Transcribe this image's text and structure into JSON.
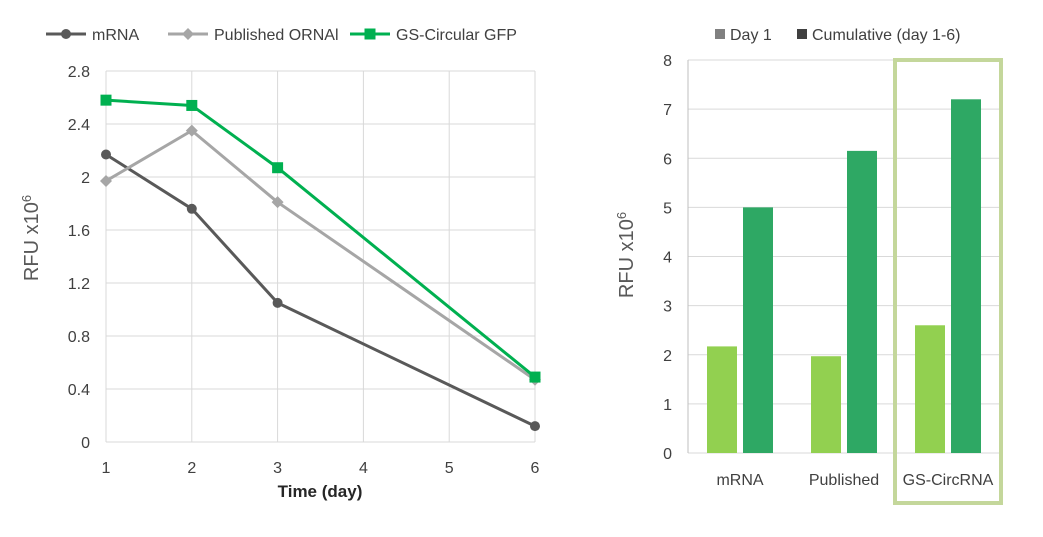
{
  "charts": {
    "line": {
      "legend": [
        {
          "name": "mRNA",
          "color": "#595959",
          "marker": "circle"
        },
        {
          "name": "Published ORNAl",
          "color": "#a6a6a6",
          "marker": "diamond"
        },
        {
          "name": "GS-Circular GFP",
          "color": "#00b050",
          "marker": "square"
        }
      ],
      "ylabel": "RFU x10",
      "ylabel_sup": "6",
      "xlabel": "Time (day)"
    },
    "bar": {
      "legend": [
        {
          "name": "Day 1",
          "color": "#92d050"
        },
        {
          "name": "Cumulative (day 1-6)",
          "color": "#2ea864"
        }
      ],
      "ylabel": "RFU x10",
      "ylabel_sup": "6",
      "highlight_color": "#c4d79b"
    }
  },
  "chart_data": [
    {
      "type": "line",
      "x": [
        1,
        2,
        3,
        4,
        5,
        6
      ],
      "xticks": [
        "1",
        "2",
        "3",
        "4",
        "5",
        "6"
      ],
      "ylim": [
        0,
        2.8
      ],
      "yticks": [
        "0",
        "0.4",
        "0.8",
        "1.2",
        "1.6",
        "2",
        "2.4",
        "2.8"
      ],
      "grid": true,
      "legend_position": "top",
      "series": [
        {
          "name": "mRNA",
          "x": [
            1,
            2,
            3,
            6
          ],
          "values": [
            2.17,
            1.76,
            1.05,
            0.12
          ]
        },
        {
          "name": "Published ORNAl",
          "x": [
            1,
            2,
            3,
            6
          ],
          "values": [
            1.97,
            2.35,
            1.81,
            0.47
          ]
        },
        {
          "name": "GS-Circular GFP",
          "x": [
            1,
            2,
            3,
            6
          ],
          "values": [
            2.58,
            2.54,
            2.07,
            0.49
          ]
        }
      ]
    },
    {
      "type": "bar",
      "categories": [
        "mRNA",
        "Published",
        "GS-CircRNA"
      ],
      "ylim": [
        0,
        8
      ],
      "yticks": [
        "0",
        "1",
        "2",
        "3",
        "4",
        "5",
        "6",
        "7",
        "8"
      ],
      "grid": true,
      "legend_position": "top",
      "series": [
        {
          "name": "Day 1",
          "values": [
            2.17,
            1.97,
            2.6
          ]
        },
        {
          "name": "Cumulative (day 1-6)",
          "values": [
            5.0,
            6.15,
            7.2
          ]
        }
      ],
      "highlighted_category": "GS-CircRNA"
    }
  ]
}
